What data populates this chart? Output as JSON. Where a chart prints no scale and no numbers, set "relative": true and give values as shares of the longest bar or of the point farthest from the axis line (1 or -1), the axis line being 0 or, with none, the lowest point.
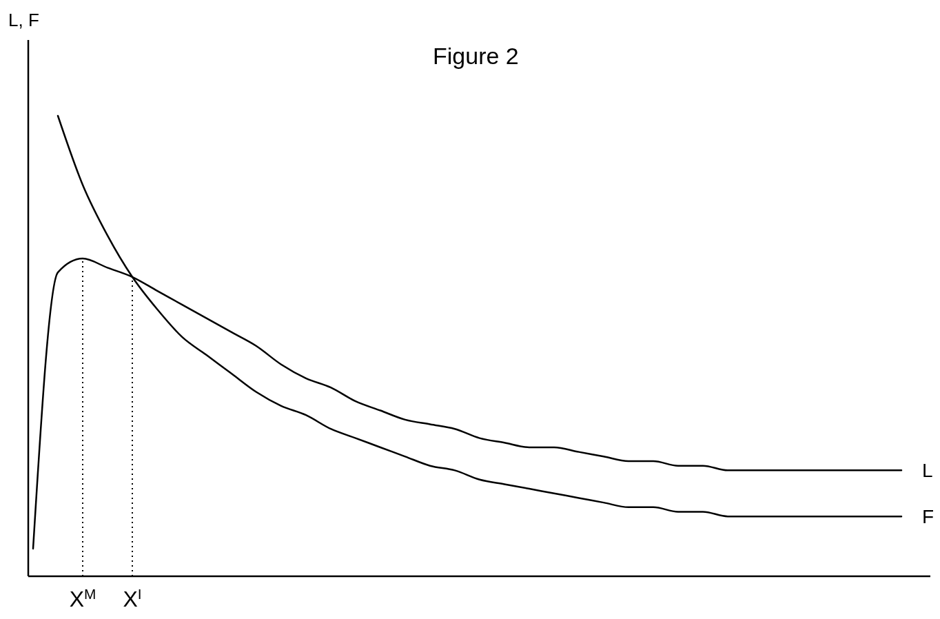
{
  "chart_data": {
    "type": "line",
    "title": "Figure 2",
    "ylabel": "L, F",
    "relative": true,
    "categories": [
      null,
      null,
      "X$^{M}$",
      null,
      "X$^{I}$",
      null,
      null,
      null,
      null,
      null,
      null,
      null,
      null,
      null,
      null,
      null,
      null,
      null,
      null,
      null,
      null,
      null,
      null,
      null,
      null,
      null,
      null,
      null,
      null,
      null,
      null,
      null,
      null,
      null,
      null,
      null
    ],
    "series": [
      {
        "name": "L",
        "color": "#000000",
        "values": [
          0.06,
          0.66,
          0.69,
          0.67,
          0.65,
          0.62,
          0.59,
          0.56,
          0.53,
          0.5,
          0.46,
          0.43,
          0.41,
          0.38,
          0.36,
          0.34,
          0.33,
          0.32,
          0.3,
          0.29,
          0.28,
          0.28,
          0.27,
          0.26,
          0.25,
          0.25,
          0.24,
          0.24,
          0.23,
          0.23,
          0.23,
          0.23,
          0.23,
          0.23,
          0.23,
          0.23
        ]
      },
      {
        "name": "F",
        "color": "#000000",
        "values": [
          null,
          1.0,
          0.85,
          0.74,
          0.65,
          0.58,
          0.52,
          0.48,
          0.44,
          0.4,
          0.37,
          0.35,
          0.32,
          0.3,
          0.28,
          0.26,
          0.24,
          0.23,
          0.21,
          0.2,
          0.19,
          0.18,
          0.17,
          0.16,
          0.15,
          0.15,
          0.14,
          0.14,
          0.13,
          0.13,
          0.13,
          0.13,
          0.13,
          0.13,
          0.13,
          0.13
        ]
      }
    ],
    "ref_lines": [
      {
        "axis": "x",
        "value": "X$^{M}$",
        "line_style": "dotted"
      },
      {
        "axis": "x",
        "value": "X$^{I}$",
        "line_style": "dotted"
      }
    ]
  }
}
